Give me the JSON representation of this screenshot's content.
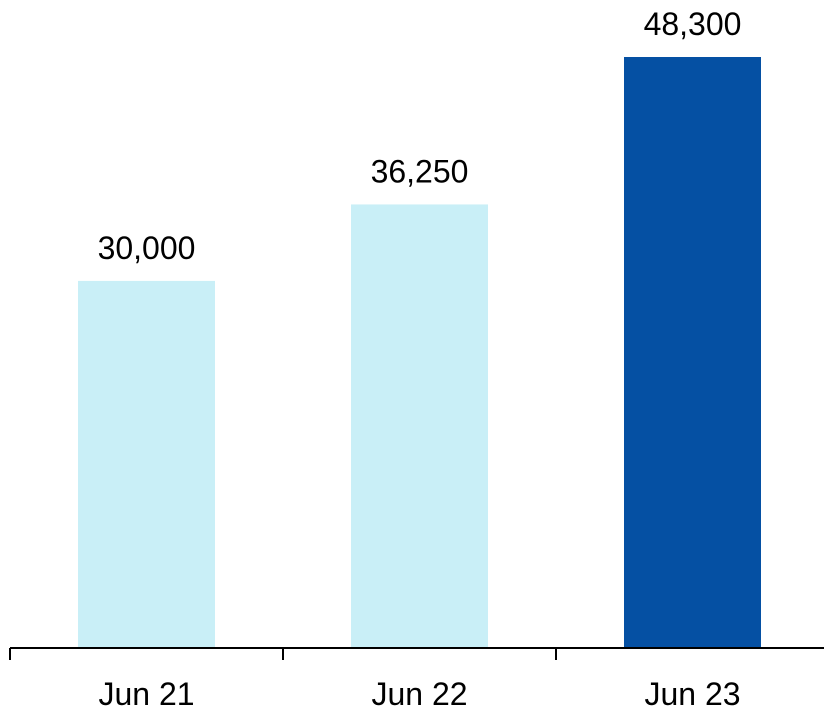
{
  "chart_data": {
    "type": "bar",
    "categories": [
      "Jun 21",
      "Jun 22",
      "Jun 23"
    ],
    "values": [
      30000,
      36250,
      48300
    ],
    "value_labels": [
      "30,000",
      "36,250",
      "48,300"
    ],
    "title": "",
    "xlabel": "",
    "ylabel": "",
    "ylim": [
      0,
      50000
    ],
    "grid": false,
    "legend": "none",
    "bar_colors": [
      "#c9eff7",
      "#c9eff7",
      "#0550a3"
    ]
  }
}
